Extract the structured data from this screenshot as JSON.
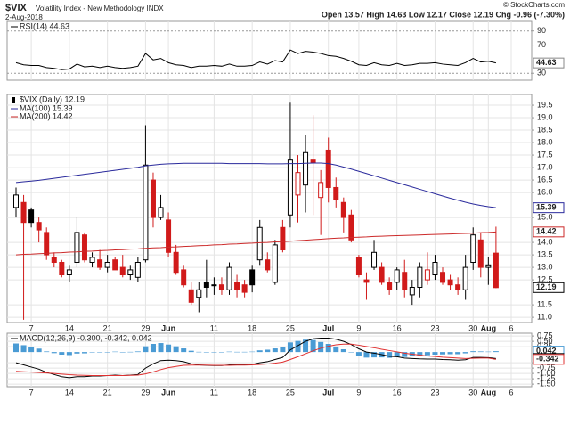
{
  "header": {
    "symbol": "$VIX",
    "name": "Volatility Index - New Methodology INDX",
    "date": "2-Aug-2018",
    "quote": "Open 13.57 High 14.63 Low 12.17 Close 12.19 Chg -0.96 (-7.30%)",
    "credit": "© StockCharts.com"
  },
  "chart_data": [
    {
      "type": "line",
      "ylim": [
        20.2,
        103.5
      ],
      "yticks": [
        30,
        70,
        90
      ],
      "grid": true,
      "series": [
        {
          "name": "RSI(14) 44.63",
          "color": "#000000",
          "end_label": "44.63",
          "values": [
            45,
            42,
            41,
            41,
            38,
            37,
            35,
            36,
            43,
            39,
            40,
            38,
            40,
            38,
            37,
            38,
            40,
            58,
            49,
            51,
            45,
            42,
            41,
            38,
            40,
            40,
            41,
            40,
            43,
            40,
            40,
            41,
            46,
            43,
            48,
            46,
            63,
            58,
            61,
            60,
            58,
            55,
            54,
            51,
            47,
            42,
            41,
            45,
            42,
            41,
            44,
            41,
            42,
            44,
            44,
            45,
            43,
            42,
            41,
            45,
            51,
            46,
            47,
            44.63,
            null,
            null
          ]
        }
      ]
    },
    {
      "type": "candlestick",
      "name": "$VIX (Daily) 12.19",
      "end_label": "12.19",
      "grid": true,
      "ylim": [
        10.79,
        19.93
      ],
      "yticks": [
        {
          "value": 11,
          "label": "11.0"
        },
        11.5,
        12.5,
        {
          "value": 13,
          "label": "13.0"
        },
        13.5,
        {
          "value": 14,
          "label": "14.0"
        },
        {
          "value": 15,
          "label": "15.0"
        },
        {
          "value": 16,
          "label": "16.0"
        },
        16.5,
        {
          "value": 17,
          "label": "17.0"
        },
        17.5,
        {
          "value": 18,
          "label": "18.0"
        },
        18.5,
        {
          "value": 19,
          "label": "19.0"
        },
        19.5
      ],
      "categories": [
        null,
        null,
        "7",
        null,
        null,
        null,
        null,
        "14",
        null,
        null,
        null,
        null,
        "21",
        null,
        null,
        null,
        null,
        "29",
        null,
        null,
        "Jun",
        null,
        null,
        null,
        null,
        null,
        "11",
        null,
        null,
        null,
        null,
        "18",
        null,
        null,
        null,
        null,
        "25",
        null,
        null,
        null,
        null,
        "Jul",
        null,
        null,
        null,
        "9",
        null,
        null,
        null,
        null,
        "16",
        null,
        null,
        null,
        null,
        "23",
        null,
        null,
        null,
        null,
        "30",
        null,
        "Aug",
        null,
        null,
        "6"
      ],
      "open": [
        15.4,
        15.6,
        15.3,
        14.8,
        14.4,
        13.4,
        13.2,
        12.7,
        13.2,
        14.3,
        13.2,
        13.3,
        13.0,
        13.3,
        13.0,
        12.7,
        12.6,
        13.3,
        16.5,
        15.0,
        14.9,
        13.6,
        12.9,
        12.1,
        11.8,
        12.4,
        12.3,
        12.3,
        12.1,
        12.4,
        12.3,
        12.9,
        13.3,
        13.3,
        12.4,
        14.6,
        15.1,
        15.9,
        16.3,
        17.3,
        15.8,
        17.7,
        16.2,
        15.6,
        15.1,
        13.4,
        12.5,
        13.0,
        13.0,
        12.4,
        12.4,
        12.8,
        11.9,
        12.2,
        12.5,
        12.7,
        12.8,
        12.5,
        12.3,
        12.1,
        13.2,
        14.1,
        13.0,
        13.57,
        null,
        null
      ],
      "high": [
        16.2,
        15.9,
        15.4,
        15.0,
        14.6,
        13.6,
        13.3,
        13.1,
        15.0,
        14.4,
        13.6,
        13.7,
        13.5,
        13.4,
        13.5,
        13.1,
        13.4,
        18.7,
        16.8,
        15.9,
        15.2,
        13.9,
        13.1,
        12.4,
        12.4,
        13.3,
        12.6,
        12.6,
        13.2,
        12.7,
        12.5,
        13.1,
        14.9,
        13.6,
        14.1,
        14.9,
        19.6,
        17.5,
        18.3,
        19.1,
        16.9,
        18.2,
        16.6,
        15.8,
        15.3,
        13.5,
        12.8,
        14.1,
        13.2,
        12.6,
        13.0,
        13.3,
        12.5,
        13.2,
        13.6,
        13.5,
        13.0,
        12.7,
        12.6,
        13.5,
        14.6,
        14.4,
        13.4,
        14.63,
        null,
        null
      ],
      "low": [
        15.0,
        10.9,
        14.6,
        14.0,
        13.3,
        13.0,
        12.6,
        12.4,
        13.0,
        13.2,
        13.0,
        12.9,
        12.8,
        12.9,
        12.6,
        12.5,
        12.4,
        13.2,
        14.6,
        14.9,
        13.4,
        12.7,
        12.2,
        11.5,
        11.2,
        11.8,
        11.9,
        11.9,
        11.9,
        11.8,
        11.8,
        12.0,
        13.1,
        12.8,
        12.3,
        13.6,
        14.6,
        14.8,
        15.2,
        15.1,
        14.3,
        15.6,
        15.4,
        14.4,
        14.0,
        12.6,
        11.7,
        12.9,
        12.3,
        11.9,
        12.1,
        11.8,
        11.5,
        11.8,
        12.3,
        12.5,
        12.3,
        12.1,
        11.9,
        11.7,
        12.9,
        12.6,
        12.3,
        12.17,
        null,
        null
      ],
      "close": [
        15.9,
        14.8,
        14.8,
        14.5,
        13.5,
        13.2,
        12.7,
        12.9,
        14.4,
        13.3,
        13.4,
        13.0,
        13.2,
        12.9,
        12.7,
        12.9,
        13.2,
        17.1,
        15.0,
        15.4,
        13.6,
        12.8,
        12.3,
        11.6,
        12.1,
        12.2,
        12.3,
        12.1,
        13.0,
        12.1,
        12.0,
        12.3,
        14.6,
        12.9,
        13.9,
        13.7,
        17.3,
        16.8,
        17.6,
        17.2,
        16.4,
        16.2,
        15.7,
        15.0,
        14.1,
        12.7,
        12.4,
        13.6,
        12.4,
        12.1,
        12.9,
        12.1,
        12.2,
        13.0,
        12.9,
        13.2,
        12.4,
        12.3,
        12.1,
        13.0,
        14.3,
        13.0,
        13.1,
        12.19,
        null,
        null
      ],
      "series": [
        {
          "name": "MA(100) 15.39",
          "color": "#2a2a9c",
          "end_label": "15.39",
          "values": [
            16.4,
            16.43,
            16.46,
            16.49,
            16.53,
            16.57,
            16.61,
            16.65,
            16.69,
            16.73,
            16.77,
            16.81,
            16.85,
            16.89,
            16.93,
            16.97,
            17.01,
            17.07,
            17.1,
            17.13,
            17.15,
            17.16,
            17.17,
            17.17,
            17.17,
            17.17,
            17.17,
            17.17,
            17.16,
            17.16,
            17.16,
            17.16,
            17.16,
            17.15,
            17.15,
            17.15,
            17.16,
            17.16,
            17.17,
            17.18,
            17.18,
            17.16,
            17.1,
            17.02,
            16.94,
            16.85,
            16.76,
            16.67,
            16.58,
            16.49,
            16.4,
            16.31,
            16.22,
            16.13,
            16.04,
            15.95,
            15.86,
            15.77,
            15.69,
            15.61,
            15.54,
            15.48,
            15.43,
            15.39,
            null,
            null
          ]
        },
        {
          "name": "MA(200) 14.42",
          "color": "#cc2a2a",
          "end_label": "14.42",
          "values": [
            13.5,
            13.52,
            13.53,
            13.55,
            13.56,
            13.58,
            13.59,
            13.61,
            13.62,
            13.64,
            13.65,
            13.67,
            13.68,
            13.7,
            13.71,
            13.73,
            13.74,
            13.76,
            13.78,
            13.79,
            13.81,
            13.82,
            13.84,
            13.85,
            13.87,
            13.88,
            13.9,
            13.91,
            13.93,
            13.94,
            13.96,
            13.97,
            13.99,
            14.0,
            14.02,
            14.03,
            14.05,
            14.07,
            14.09,
            14.11,
            14.13,
            14.15,
            14.17,
            14.18,
            14.2,
            14.21,
            14.22,
            14.24,
            14.25,
            14.26,
            14.27,
            14.28,
            14.29,
            14.3,
            14.31,
            14.32,
            14.33,
            14.34,
            14.35,
            14.36,
            14.37,
            14.39,
            14.4,
            14.42,
            null,
            null
          ]
        }
      ]
    },
    {
      "type": "combo",
      "legend": "MACD(12,26,9) -0.300, -0.342, 0.042",
      "grid": true,
      "ylim": [
        -1.62,
        0.88
      ],
      "yticks": [
        {
          "value": -1.5,
          "label": "-1.50"
        },
        -1.25,
        {
          "value": -1,
          "label": "-1.00"
        },
        -0.75,
        {
          "value": -0.5,
          "label": "-0.50"
        },
        0.25,
        {
          "value": 0.5,
          "label": "0.50"
        },
        0.75
      ],
      "categories": [
        null,
        null,
        "7",
        null,
        null,
        null,
        null,
        "14",
        null,
        null,
        null,
        null,
        "21",
        null,
        null,
        null,
        null,
        "29",
        null,
        null,
        "Jun",
        null,
        null,
        null,
        null,
        null,
        "11",
        null,
        null,
        null,
        null,
        "18",
        null,
        null,
        null,
        null,
        "25",
        null,
        null,
        null,
        null,
        "Jul",
        null,
        null,
        null,
        "9",
        null,
        null,
        null,
        null,
        "16",
        null,
        null,
        null,
        null,
        "23",
        null,
        null,
        null,
        null,
        "30",
        null,
        "Aug",
        null,
        null,
        "6"
      ],
      "series": [
        {
          "kind": "bar",
          "color": "#4a9bd4",
          "end_label": "0.042",
          "values": [
            0.4,
            0.32,
            0.24,
            0.16,
            0.03,
            -0.05,
            -0.12,
            -0.14,
            -0.07,
            -0.06,
            -0.02,
            -0.02,
            0.0,
            0.02,
            0.0,
            0.01,
            0.03,
            0.27,
            0.38,
            0.42,
            0.35,
            0.27,
            0.17,
            0.06,
            0.01,
            -0.01,
            -0.01,
            -0.01,
            0.02,
            0.01,
            0.01,
            0.02,
            0.08,
            0.11,
            0.17,
            0.22,
            0.45,
            0.52,
            0.58,
            0.56,
            0.47,
            0.38,
            0.26,
            0.13,
            -0.02,
            -0.17,
            -0.26,
            -0.25,
            -0.25,
            -0.27,
            -0.23,
            -0.23,
            -0.2,
            -0.18,
            -0.15,
            -0.12,
            -0.11,
            -0.1,
            -0.1,
            -0.06,
            0.04,
            0.03,
            0.02,
            0.042,
            null,
            null
          ]
        },
        {
          "kind": "line",
          "color": "#000000",
          "end_label": "-0.300",
          "values": [
            -0.5,
            -0.6,
            -0.7,
            -0.8,
            -0.95,
            -1.05,
            -1.15,
            -1.2,
            -1.15,
            -1.15,
            -1.12,
            -1.12,
            -1.1,
            -1.08,
            -1.1,
            -1.08,
            -1.05,
            -0.75,
            -0.55,
            -0.4,
            -0.38,
            -0.4,
            -0.45,
            -0.55,
            -0.6,
            -0.62,
            -0.63,
            -0.63,
            -0.6,
            -0.6,
            -0.6,
            -0.58,
            -0.5,
            -0.45,
            -0.35,
            -0.25,
            0.1,
            0.3,
            0.5,
            0.62,
            0.65,
            0.65,
            0.6,
            0.5,
            0.35,
            0.15,
            0.0,
            -0.05,
            -0.12,
            -0.2,
            -0.22,
            -0.28,
            -0.3,
            -0.32,
            -0.33,
            -0.33,
            -0.35,
            -0.36,
            -0.38,
            -0.36,
            -0.25,
            -0.25,
            -0.26,
            -0.3,
            null,
            null
          ]
        },
        {
          "kind": "line",
          "color": "#e03030",
          "end_label": "-0.342",
          "values": [
            -0.9,
            -0.92,
            -0.94,
            -0.96,
            -0.98,
            -1.0,
            -1.03,
            -1.06,
            -1.08,
            -1.09,
            -1.1,
            -1.1,
            -1.1,
            -1.1,
            -1.1,
            -1.09,
            -1.08,
            -1.02,
            -0.93,
            -0.82,
            -0.73,
            -0.67,
            -0.62,
            -0.61,
            -0.61,
            -0.61,
            -0.62,
            -0.62,
            -0.62,
            -0.61,
            -0.61,
            -0.6,
            -0.58,
            -0.56,
            -0.52,
            -0.47,
            -0.35,
            -0.22,
            -0.08,
            0.06,
            0.18,
            0.27,
            0.34,
            0.37,
            0.37,
            0.32,
            0.26,
            0.2,
            0.13,
            0.07,
            0.01,
            -0.05,
            -0.1,
            -0.14,
            -0.18,
            -0.21,
            -0.24,
            -0.26,
            -0.28,
            -0.3,
            -0.29,
            -0.28,
            -0.28,
            -0.342,
            null,
            null
          ]
        }
      ]
    }
  ]
}
